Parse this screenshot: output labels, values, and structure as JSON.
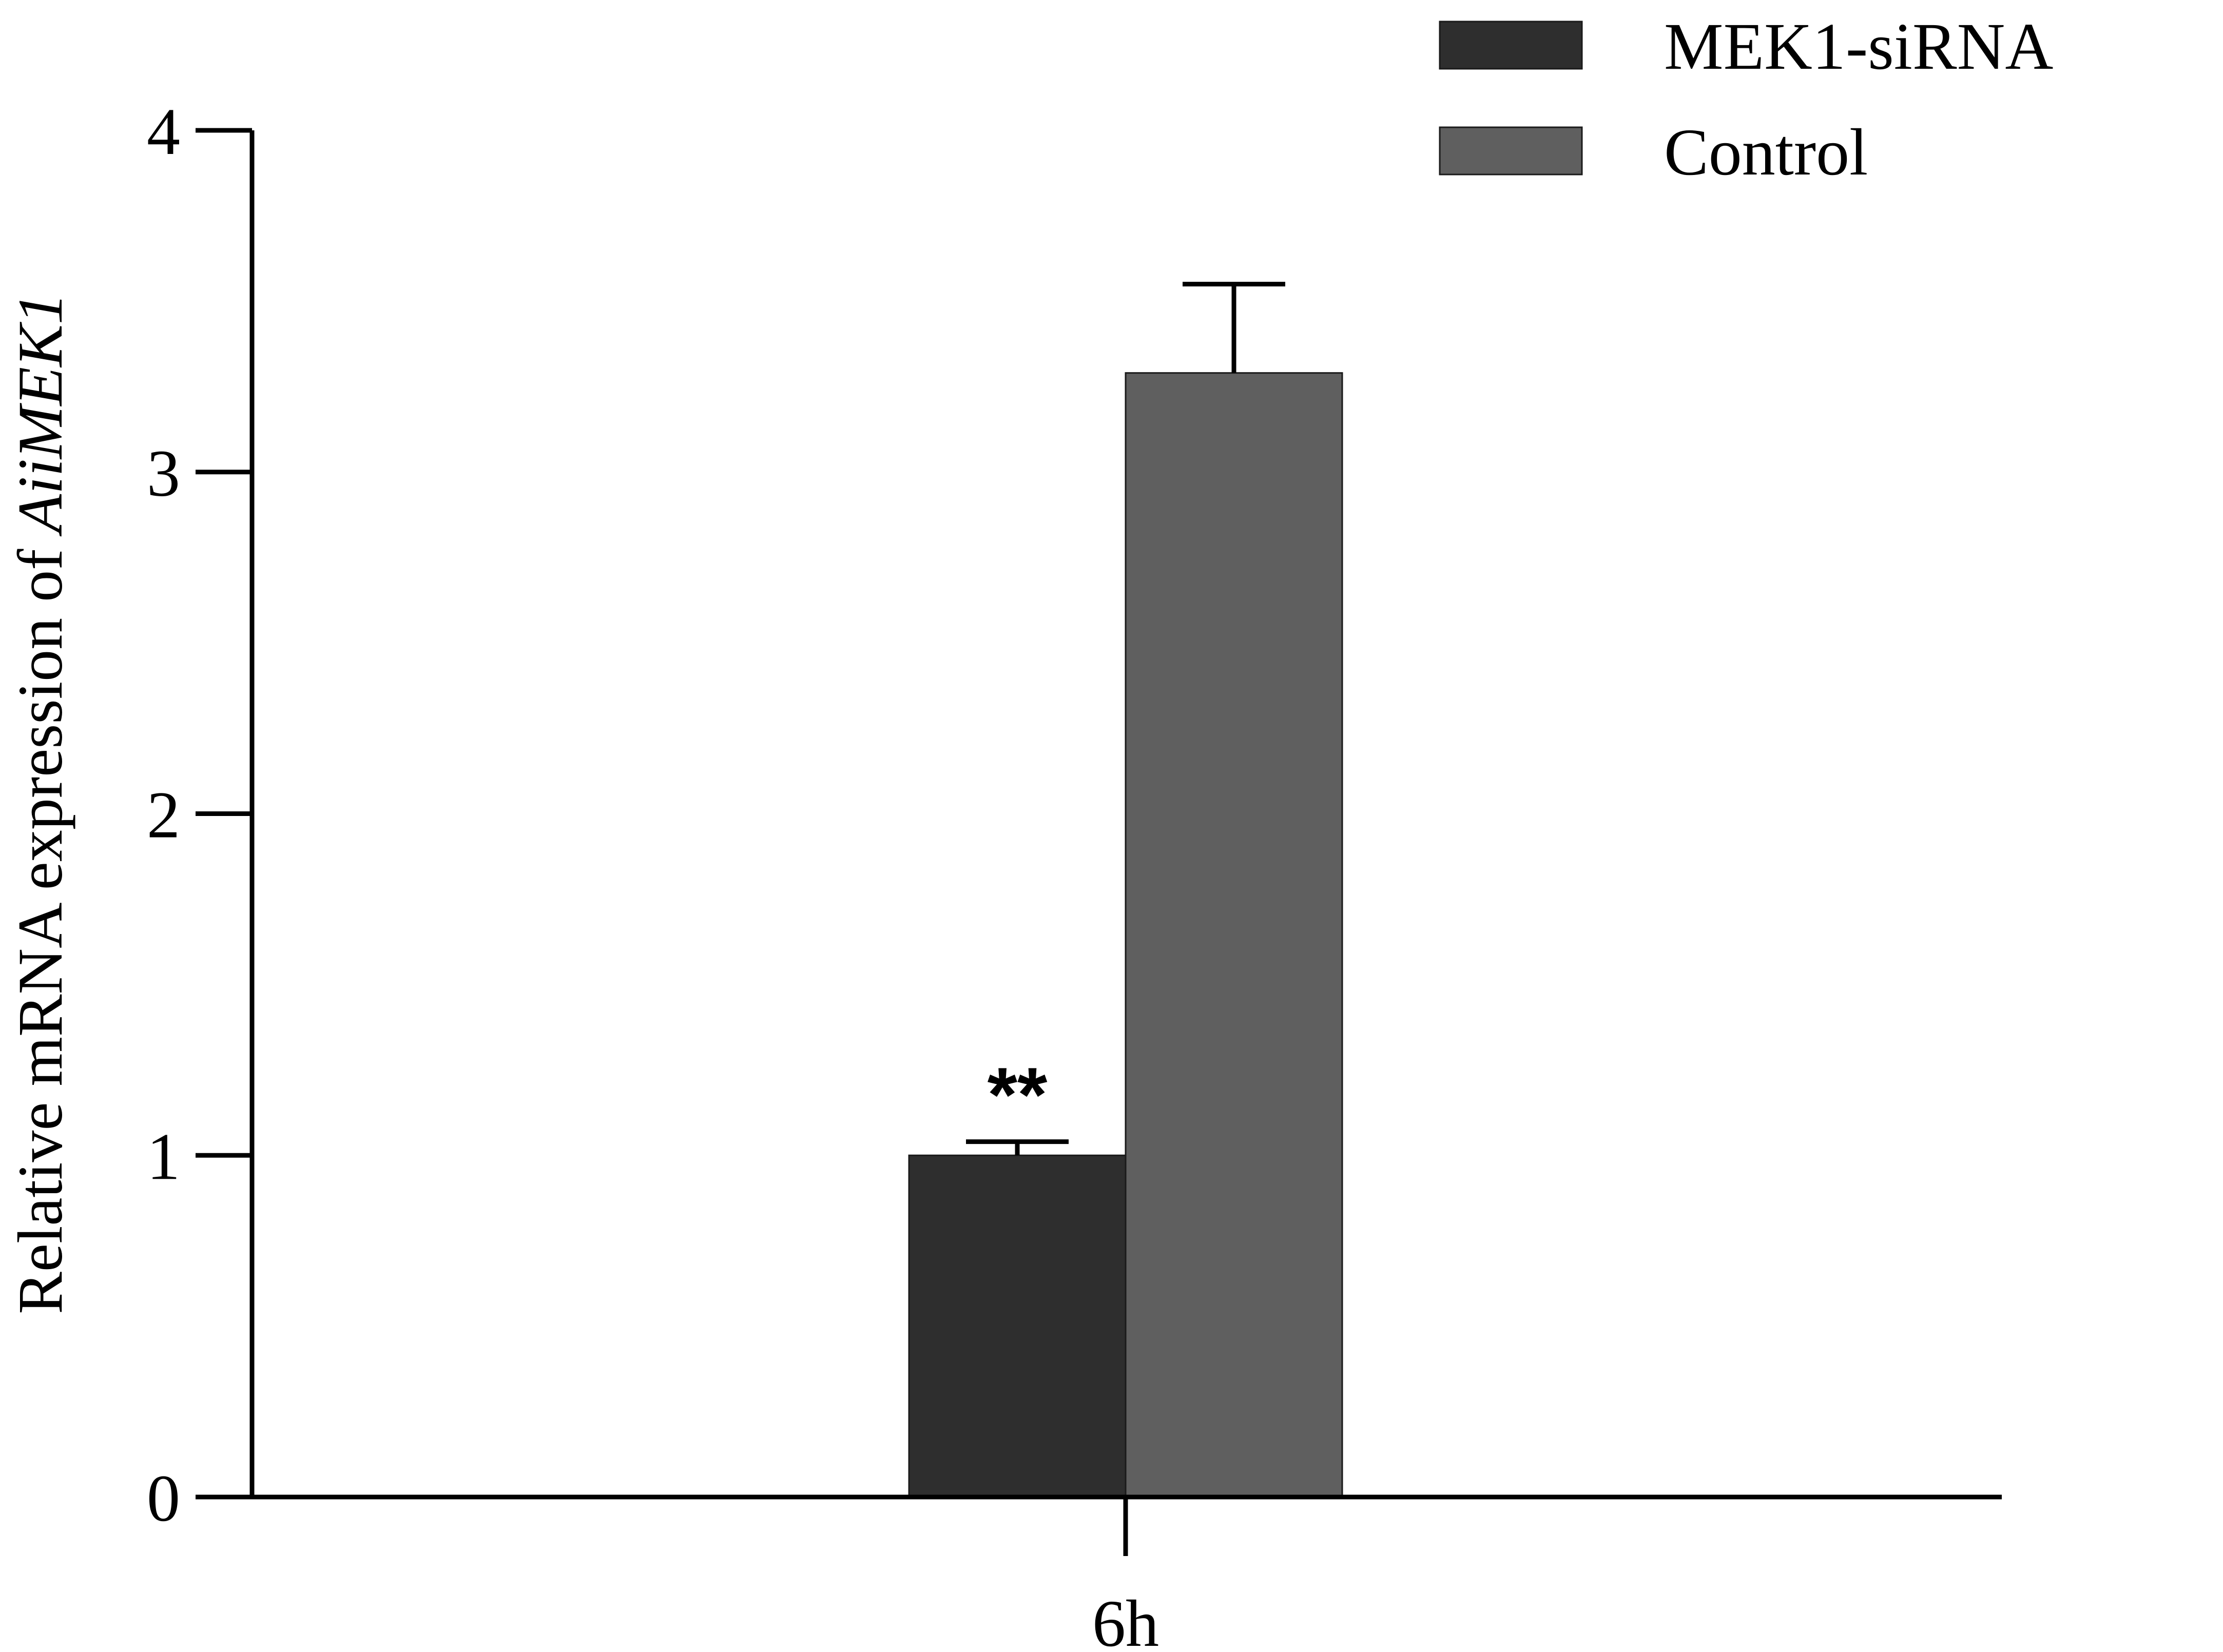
{
  "chart_data": {
    "type": "bar",
    "categories": [
      "6h"
    ],
    "series": [
      {
        "name": "MEK1-siRNA",
        "values": [
          1.0
        ],
        "error": [
          0.04
        ],
        "color": "#2e2e2e",
        "annotation": "**"
      },
      {
        "name": "Control",
        "values": [
          3.29
        ],
        "error": [
          0.26
        ],
        "color": "#5f5f5f",
        "annotation": ""
      }
    ],
    "ylabel": "Relative mRNA expression of ",
    "ylabel_italic": "AiiMEK1",
    "ylim": [
      0,
      4
    ],
    "yticks": [
      0,
      1,
      2,
      3,
      4
    ],
    "grid": false,
    "legend_position": "top-right"
  }
}
